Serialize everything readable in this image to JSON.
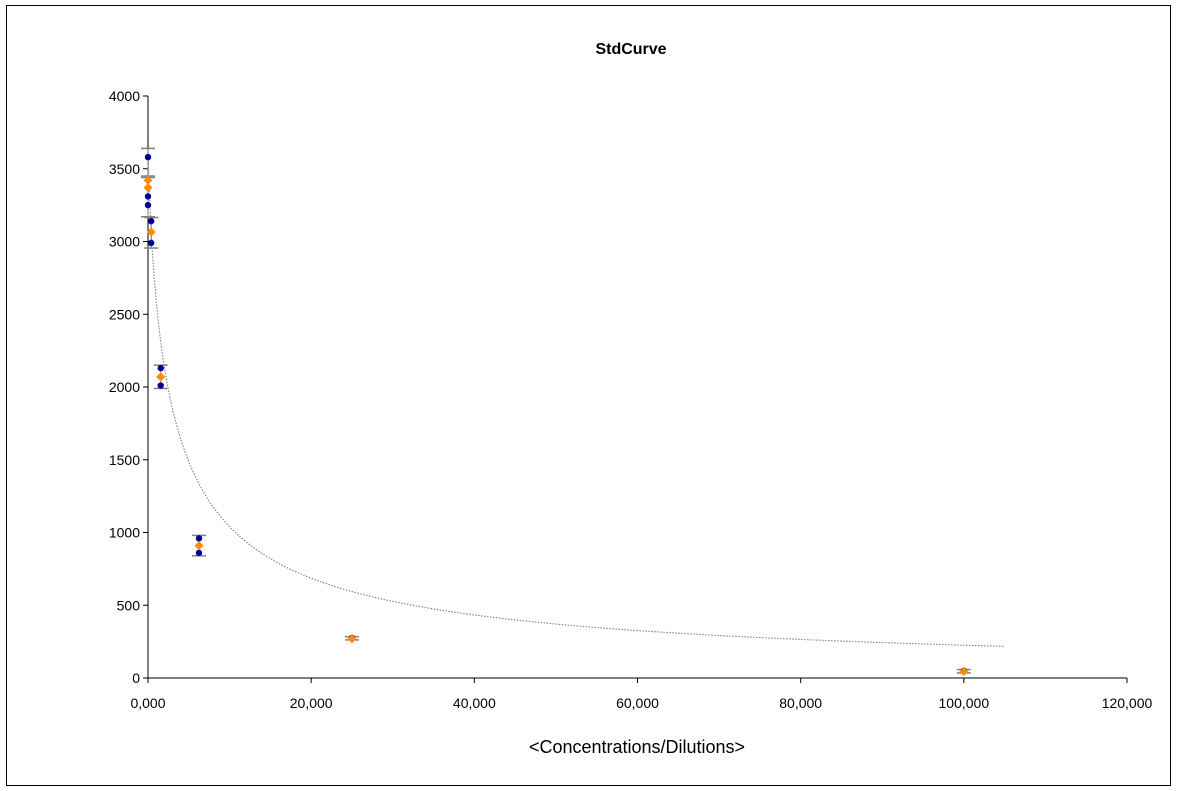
{
  "chart_data": {
    "type": "scatter",
    "title": "StdCurve",
    "xlabel": "<Concentrations/Dilutions>",
    "ylabel": "",
    "xlim": [
      0,
      120000
    ],
    "ylim": [
      0,
      4000
    ],
    "x_ticks": [
      "0,000",
      "20,000",
      "40,000",
      "60,000",
      "80,000",
      "100,000",
      "120,000"
    ],
    "y_ticks": [
      "0",
      "500",
      "1000",
      "1500",
      "2000",
      "2500",
      "3000",
      "3500",
      "4000"
    ],
    "grid": false,
    "legend": "none",
    "colors": {
      "replicates": "#000099",
      "means": "#ff8c00",
      "curve": "#808080",
      "error_bars": "#808080"
    },
    "series": [
      {
        "values": [
          {
            "x": 0,
            "y": 3580
          },
          {
            "x": 0,
            "y": 3310
          },
          {
            "x": 0,
            "y": 3250
          },
          {
            "x": 390,
            "y": 3140
          },
          {
            "x": 390,
            "y": 2990
          },
          {
            "x": 1560,
            "y": 2130
          },
          {
            "x": 1560,
            "y": 2010
          },
          {
            "x": 6250,
            "y": 960
          },
          {
            "x": 6250,
            "y": 860
          },
          {
            "x": 25000,
            "y": 275
          },
          {
            "x": 100000,
            "y": 50
          }
        ]
      },
      {
        "values": [
          {
            "x": 0,
            "y": 3420
          },
          {
            "x": 0,
            "y": 3370
          },
          {
            "x": 390,
            "y": 3065
          },
          {
            "x": 1560,
            "y": 2070
          },
          {
            "x": 6250,
            "y": 910
          },
          {
            "x": 25000,
            "y": 270
          },
          {
            "x": 100000,
            "y": 45
          }
        ]
      }
    ],
    "error_bars": [
      {
        "x": 0,
        "low": 3440,
        "high": 3640
      },
      {
        "x": 0,
        "low": 3170,
        "high": 3450
      },
      {
        "x": 390,
        "low": 2955,
        "high": 3165
      },
      {
        "x": 1560,
        "low": 1990,
        "high": 2150
      },
      {
        "x": 6250,
        "low": 840,
        "high": 980
      },
      {
        "x": 25000,
        "low": 262,
        "high": 284
      },
      {
        "x": 100000,
        "low": 35,
        "high": 58
      }
    ],
    "fit_curve": {
      "type": "4PL",
      "x_range": [
        0,
        105000
      ],
      "top": 3700,
      "bottom": 0,
      "ec50": 3000,
      "slope": 0.78
    }
  }
}
